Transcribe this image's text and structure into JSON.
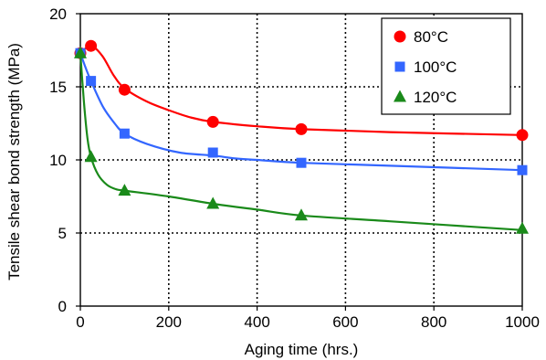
{
  "chart_data": {
    "type": "scatter",
    "xlabel": "Aging time (hrs.)",
    "ylabel": "Tensile shear bond strength (MPa)",
    "xlim": [
      0,
      1000
    ],
    "ylim": [
      0,
      20
    ],
    "xticks": [
      0,
      200,
      400,
      600,
      800,
      1000
    ],
    "yticks": [
      0,
      5,
      10,
      15,
      20
    ],
    "grid": "dotted",
    "legend_position": "top-right",
    "series": [
      {
        "name": "80°C",
        "color": "#ff0000",
        "marker": "circle",
        "x": [
          0,
          24,
          100,
          300,
          500,
          1000
        ],
        "y": [
          17.3,
          17.8,
          14.8,
          12.6,
          12.1,
          11.7
        ],
        "curve_x": [
          0,
          24,
          50,
          75,
          100,
          150,
          200,
          250,
          300,
          400,
          500,
          700,
          1000
        ],
        "curve_y": [
          17.3,
          17.8,
          17.1,
          15.8,
          14.9,
          14.0,
          13.4,
          12.9,
          12.6,
          12.3,
          12.1,
          11.9,
          11.7
        ]
      },
      {
        "name": "100°C",
        "color": "#3366ff",
        "marker": "square",
        "x": [
          0,
          24,
          100,
          300,
          500,
          1000
        ],
        "y": [
          17.3,
          15.4,
          11.8,
          10.5,
          9.8,
          9.3
        ],
        "curve_x": [
          0,
          12,
          24,
          50,
          75,
          100,
          150,
          225,
          300,
          350,
          400,
          500,
          700,
          1000
        ],
        "curve_y": [
          17.3,
          16.3,
          15.4,
          13.7,
          12.6,
          11.8,
          11.1,
          10.5,
          10.3,
          10.1,
          10.0,
          9.8,
          9.6,
          9.3
        ]
      },
      {
        "name": "120°C",
        "color": "#1a8a1a",
        "marker": "triangle",
        "x": [
          0,
          24,
          100,
          300,
          500,
          1000
        ],
        "y": [
          17.3,
          10.2,
          7.9,
          7.0,
          6.2,
          5.3
        ],
        "curve_x": [
          0,
          8,
          16,
          24,
          40,
          60,
          80,
          100,
          200,
          300,
          400,
          500,
          700,
          1000
        ],
        "curve_y": [
          17.3,
          14.0,
          11.5,
          10.2,
          9.0,
          8.3,
          8.0,
          7.9,
          7.5,
          7.0,
          6.6,
          6.2,
          5.8,
          5.2
        ]
      }
    ]
  }
}
